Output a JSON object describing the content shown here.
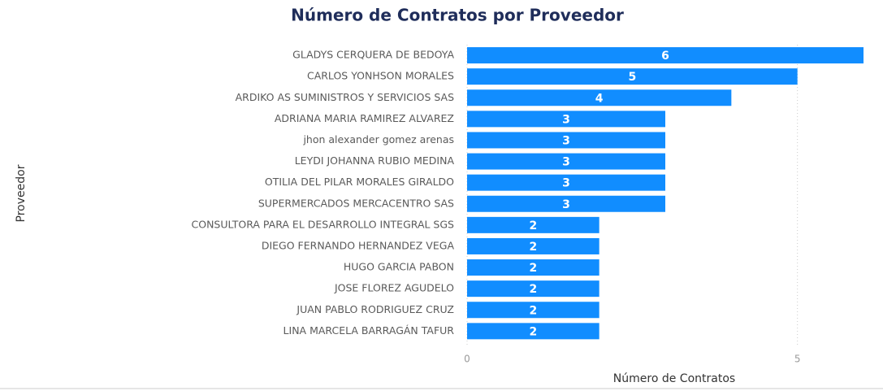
{
  "chart_data": {
    "type": "bar",
    "orientation": "horizontal",
    "title": "Número de Contratos por Proveedor",
    "x_label": "Número de Contratos",
    "y_label": "Proveedor",
    "categories": [
      "GLADYS CERQUERA DE BEDOYA",
      "CARLOS YONHSON MORALES",
      "ARDIKO AS SUMINISTROS Y SERVICIOS SAS",
      "ADRIANA MARIA RAMIREZ ALVAREZ",
      "jhon alexander gomez arenas",
      "LEYDI JOHANNA RUBIO MEDINA",
      "OTILIA DEL PILAR MORALES GIRALDO",
      "SUPERMERCADOS MERCACENTRO SAS",
      "CONSULTORA PARA EL DESARROLLO INTEGRAL SGS",
      "DIEGO FERNANDO HERNANDEZ VEGA",
      "HUGO GARCIA PABON",
      "JOSE FLOREZ AGUDELO",
      "JUAN PABLO RODRIGUEZ CRUZ",
      "LINA MARCELA BARRAGÁN TAFUR"
    ],
    "values": [
      6,
      5,
      4,
      3,
      3,
      3,
      3,
      3,
      2,
      2,
      2,
      2,
      2,
      2
    ],
    "color": "#118dff",
    "xlim": [
      0,
      6
    ],
    "xticks": [
      0,
      5
    ],
    "grid": true
  }
}
